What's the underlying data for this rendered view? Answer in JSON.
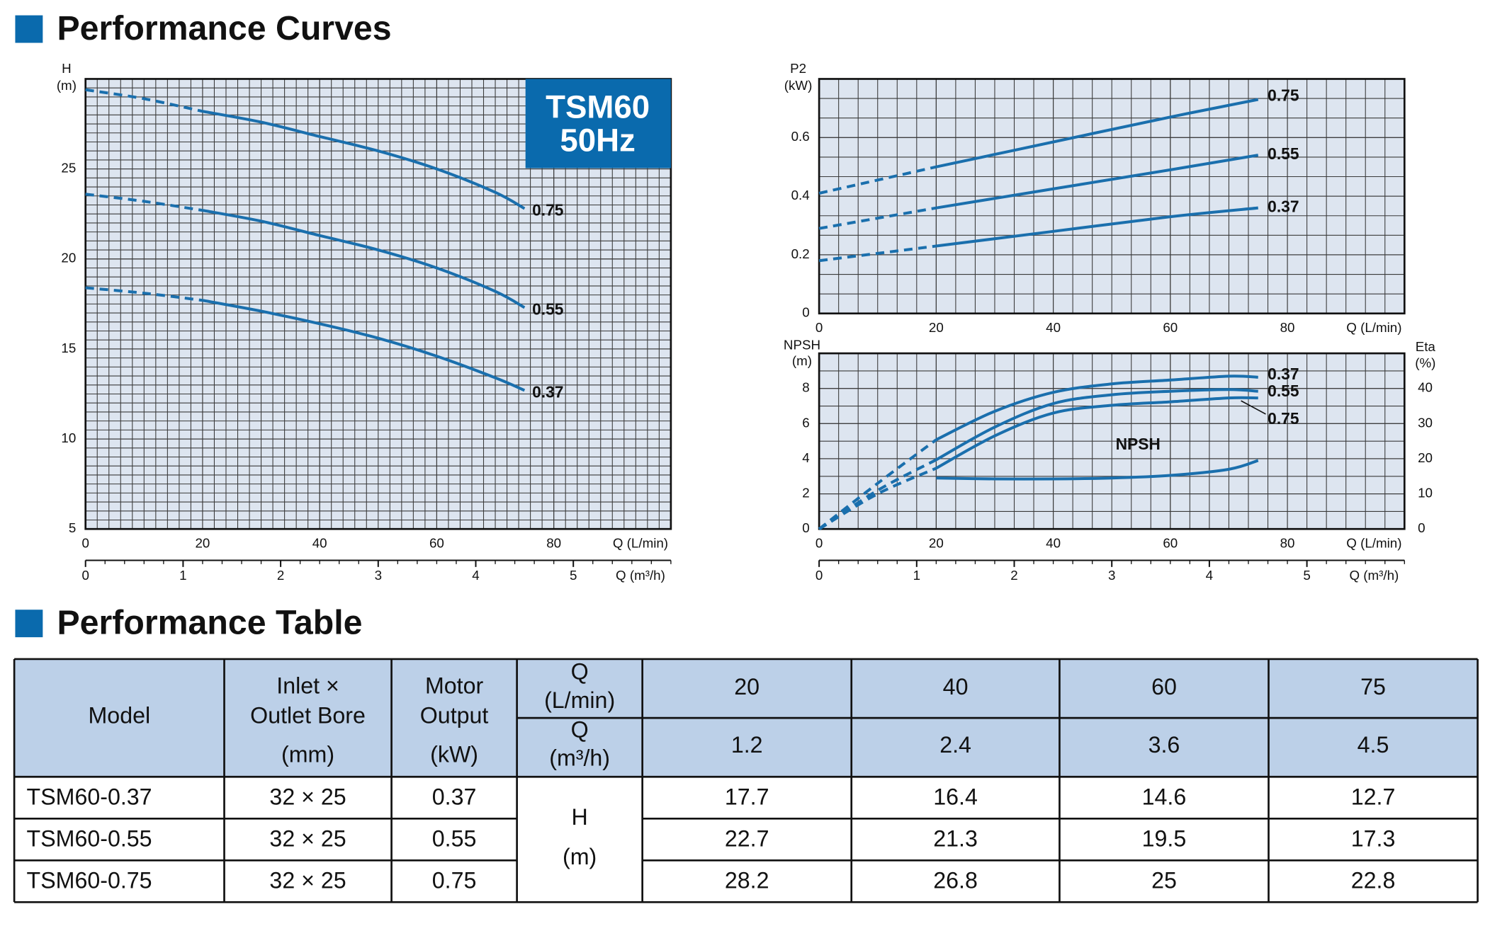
{
  "headings": {
    "curves": "Performance Curves",
    "table": "Performance Table"
  },
  "chart_data": [
    {
      "type": "line",
      "badge": [
        "TSM60",
        "50Hz"
      ],
      "ylabel": [
        "H",
        "(m)"
      ],
      "xlabel": "Q (L/min)",
      "x2label": "Q (m³/h)",
      "xlim": [
        0,
        100
      ],
      "xticks": [
        0,
        20,
        40,
        60,
        80
      ],
      "x2lim": [
        0,
        6
      ],
      "x2ticks": [
        0,
        1,
        2,
        3,
        4,
        5
      ],
      "ylim": [
        5,
        30
      ],
      "yticks": [
        5,
        10,
        15,
        20,
        25
      ],
      "grid": true,
      "dashed_to": 20,
      "x": [
        0,
        10,
        20,
        30,
        40,
        50,
        60,
        70,
        75
      ],
      "series": [
        {
          "name": "0.75",
          "color": "#1a6fad",
          "values": [
            29.4,
            28.9,
            28.2,
            27.6,
            26.8,
            26.0,
            25.0,
            23.7,
            22.8
          ]
        },
        {
          "name": "0.55",
          "color": "#1a6fad",
          "values": [
            23.6,
            23.2,
            22.7,
            22.1,
            21.3,
            20.5,
            19.5,
            18.2,
            17.3
          ]
        },
        {
          "name": "0.37",
          "color": "#1a6fad",
          "values": [
            18.4,
            18.1,
            17.7,
            17.1,
            16.4,
            15.6,
            14.6,
            13.4,
            12.7
          ]
        }
      ]
    },
    {
      "type": "line",
      "ylabel": [
        "P2",
        "(kW)"
      ],
      "xlabel": "Q (L/min)",
      "xlim": [
        0,
        100
      ],
      "xticks": [
        0,
        20,
        40,
        60,
        80
      ],
      "ylim": [
        0,
        0.8
      ],
      "yticks": [
        0,
        0.2,
        0.4,
        0.6
      ],
      "grid": true,
      "dashed_to": 20,
      "x": [
        0,
        20,
        40,
        60,
        75
      ],
      "series": [
        {
          "name": "0.75",
          "color": "#1a6fad",
          "values": [
            0.41,
            0.5,
            0.585,
            0.67,
            0.73
          ]
        },
        {
          "name": "0.55",
          "color": "#1a6fad",
          "values": [
            0.29,
            0.36,
            0.425,
            0.49,
            0.54
          ]
        },
        {
          "name": "0.37",
          "color": "#1a6fad",
          "values": [
            0.18,
            0.23,
            0.28,
            0.33,
            0.36
          ]
        }
      ]
    },
    {
      "type": "line",
      "ylabel": [
        "NPSH",
        "(m)"
      ],
      "y2label": [
        "Eta",
        "(%)"
      ],
      "xlabel": "Q (L/min)",
      "x2label": "Q (m³/h)",
      "xlim": [
        0,
        100
      ],
      "xticks": [
        0,
        20,
        40,
        60,
        80
      ],
      "x2lim": [
        0,
        6
      ],
      "x2ticks": [
        0,
        1,
        2,
        3,
        4,
        5
      ],
      "ylim": [
        0,
        10
      ],
      "yticks": [
        0,
        2,
        4,
        6,
        8
      ],
      "y2lim": [
        0,
        50
      ],
      "y2ticks": [
        0,
        10,
        20,
        30,
        40
      ],
      "grid": true,
      "dashed_to": 20,
      "x": [
        0,
        10,
        20,
        30,
        40,
        50,
        60,
        70,
        75
      ],
      "series": [
        {
          "name": "0.37",
          "color": "#1a6fad",
          "axis": "y2",
          "values": [
            0,
            13,
            25.4,
            33.5,
            38.9,
            41.3,
            42.4,
            43.5,
            43.2
          ]
        },
        {
          "name": "0.55",
          "color": "#1a6fad",
          "axis": "y2",
          "values": [
            0,
            11,
            19.7,
            29,
            35.7,
            38.2,
            39.2,
            39.7,
            39.2
          ]
        },
        {
          "name": "0.75",
          "color": "#1a6fad",
          "axis": "y2",
          "values": [
            0,
            10,
            17.3,
            26.5,
            33,
            35.2,
            36.2,
            37.3,
            37.3
          ]
        },
        {
          "name": "NPSH",
          "color": "#1a6fad",
          "x": [
            20,
            30,
            40,
            50,
            60,
            70,
            75
          ],
          "values": [
            2.9,
            2.85,
            2.85,
            2.9,
            3.05,
            3.4,
            3.9
          ]
        }
      ]
    }
  ],
  "table": {
    "header": {
      "model": "Model",
      "bore": [
        "Inlet ×",
        "Outlet Bore",
        "(mm)"
      ],
      "output": [
        "Motor",
        "Output",
        "(kW)"
      ],
      "q_lpm": [
        "Q",
        "(L/min)"
      ],
      "q_m3h": [
        "Q",
        "(m³/h)"
      ],
      "lpm": [
        "20",
        "40",
        "60",
        "75"
      ],
      "m3h": [
        "1.2",
        "2.4",
        "3.6",
        "4.5"
      ]
    },
    "h_label": [
      "H",
      "(m)"
    ],
    "rows": [
      [
        "TSM60-0.37",
        "32 × 25",
        "0.37",
        "17.7",
        "16.4",
        "14.6",
        "12.7"
      ],
      [
        "TSM60-0.55",
        "32 × 25",
        "0.55",
        "22.7",
        "21.3",
        "19.5",
        "17.3"
      ],
      [
        "TSM60-0.75",
        "32 × 25",
        "0.75",
        "28.2",
        "26.8",
        "25",
        "22.8"
      ]
    ]
  }
}
